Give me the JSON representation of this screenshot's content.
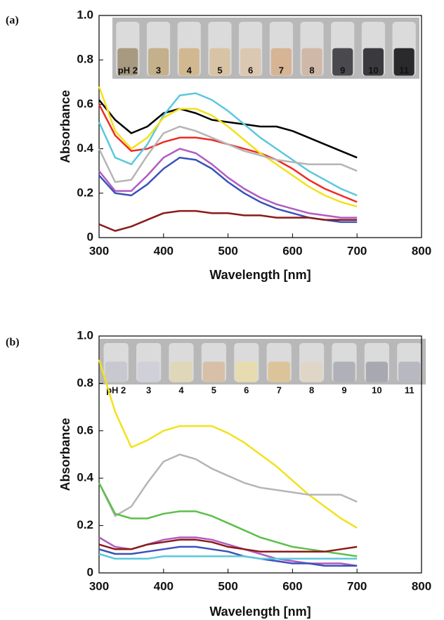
{
  "chart_data": [
    {
      "type": "line",
      "panel_label": "(a)",
      "xlabel": "Wavelength [nm]",
      "ylabel": "Absorbance",
      "xlim": [
        300,
        800
      ],
      "ylim": [
        0,
        1
      ],
      "xticks": [
        300,
        400,
        500,
        600,
        700,
        800
      ],
      "yticks": [
        0,
        0.2,
        0.4,
        0.6,
        0.8,
        {
          "value": 1,
          "label": "1.0"
        }
      ],
      "inset_labels": [
        "pH 2",
        "3",
        "4",
        "5",
        "6",
        "7",
        "8",
        "9",
        "10",
        "11"
      ],
      "x": [
        300,
        325,
        350,
        375,
        400,
        425,
        450,
        475,
        500,
        525,
        550,
        575,
        600,
        625,
        650,
        675,
        700
      ],
      "series": [
        {
          "color": "#000000",
          "values": [
            0.62,
            0.53,
            0.47,
            0.5,
            0.56,
            0.58,
            0.56,
            0.53,
            0.52,
            0.51,
            0.5,
            0.5,
            0.48,
            0.45,
            0.42,
            0.39,
            0.36
          ]
        },
        {
          "color": "#ee2b24",
          "values": [
            0.6,
            0.46,
            0.39,
            0.4,
            0.43,
            0.45,
            0.45,
            0.44,
            0.42,
            0.4,
            0.38,
            0.35,
            0.31,
            0.26,
            0.22,
            0.19,
            0.16
          ]
        },
        {
          "color": "#5bc8dc",
          "values": [
            0.52,
            0.36,
            0.33,
            0.42,
            0.55,
            0.64,
            0.65,
            0.62,
            0.57,
            0.51,
            0.45,
            0.4,
            0.35,
            0.3,
            0.26,
            0.22,
            0.19
          ]
        },
        {
          "color": "#f2e21c",
          "values": [
            0.68,
            0.48,
            0.4,
            0.45,
            0.54,
            0.58,
            0.58,
            0.55,
            0.5,
            0.44,
            0.38,
            0.33,
            0.28,
            0.23,
            0.19,
            0.16,
            0.14
          ]
        },
        {
          "color": "#b5b5b5",
          "values": [
            0.4,
            0.25,
            0.26,
            0.37,
            0.47,
            0.5,
            0.48,
            0.45,
            0.42,
            0.39,
            0.37,
            0.35,
            0.34,
            0.33,
            0.33,
            0.33,
            0.3
          ]
        },
        {
          "color": "#b05cc0",
          "values": [
            0.3,
            0.21,
            0.21,
            0.28,
            0.36,
            0.4,
            0.38,
            0.33,
            0.27,
            0.22,
            0.18,
            0.15,
            0.13,
            0.11,
            0.1,
            0.09,
            0.09
          ]
        },
        {
          "color": "#3a52b8",
          "values": [
            0.28,
            0.2,
            0.19,
            0.24,
            0.31,
            0.36,
            0.35,
            0.31,
            0.25,
            0.2,
            0.16,
            0.13,
            0.11,
            0.09,
            0.08,
            0.07,
            0.07
          ]
        },
        {
          "color": "#8b1a1a",
          "values": [
            0.06,
            0.03,
            0.05,
            0.08,
            0.11,
            0.12,
            0.12,
            0.11,
            0.11,
            0.1,
            0.1,
            0.09,
            0.09,
            0.09,
            0.08,
            0.08,
            0.08
          ]
        }
      ]
    },
    {
      "type": "line",
      "panel_label": "(b)",
      "xlabel": "Wavelength [nm]",
      "ylabel": "Absorbance",
      "xlim": [
        300,
        800
      ],
      "ylim": [
        0,
        1
      ],
      "xticks": [
        300,
        400,
        500,
        600,
        700,
        800
      ],
      "yticks": [
        0,
        0.2,
        0.4,
        0.6,
        0.8,
        {
          "value": 1,
          "label": "1.0"
        }
      ],
      "inset_labels": [
        "pH 2",
        "3",
        "4",
        "5",
        "6",
        "7",
        "8",
        "9",
        "10",
        "11"
      ],
      "x": [
        300,
        325,
        350,
        375,
        400,
        425,
        450,
        475,
        500,
        525,
        550,
        575,
        600,
        625,
        650,
        675,
        700
      ],
      "series": [
        {
          "color": "#f2e21c",
          "values": [
            0.9,
            0.68,
            0.53,
            0.56,
            0.6,
            0.62,
            0.62,
            0.62,
            0.59,
            0.55,
            0.5,
            0.45,
            0.39,
            0.33,
            0.28,
            0.23,
            0.19
          ]
        },
        {
          "color": "#b5b5b5",
          "values": [
            0.38,
            0.24,
            0.28,
            0.38,
            0.47,
            0.5,
            0.48,
            0.44,
            0.41,
            0.38,
            0.36,
            0.35,
            0.34,
            0.33,
            0.33,
            0.33,
            0.3
          ]
        },
        {
          "color": "#5cbf4a",
          "values": [
            0.38,
            0.25,
            0.23,
            0.23,
            0.25,
            0.26,
            0.26,
            0.24,
            0.21,
            0.18,
            0.15,
            0.13,
            0.11,
            0.1,
            0.09,
            0.08,
            0.07
          ]
        },
        {
          "color": "#b05cc0",
          "values": [
            0.15,
            0.11,
            0.1,
            0.12,
            0.14,
            0.15,
            0.15,
            0.14,
            0.12,
            0.1,
            0.08,
            0.06,
            0.05,
            0.04,
            0.04,
            0.04,
            0.03
          ]
        },
        {
          "color": "#8b1a1a",
          "values": [
            0.12,
            0.1,
            0.1,
            0.12,
            0.13,
            0.14,
            0.14,
            0.13,
            0.11,
            0.1,
            0.09,
            0.09,
            0.09,
            0.09,
            0.09,
            0.1,
            0.11
          ]
        },
        {
          "color": "#3a52b8",
          "values": [
            0.1,
            0.08,
            0.08,
            0.09,
            0.1,
            0.11,
            0.11,
            0.1,
            0.09,
            0.07,
            0.06,
            0.05,
            0.04,
            0.04,
            0.03,
            0.03,
            0.03
          ]
        },
        {
          "color": "#5bc8dc",
          "values": [
            0.08,
            0.06,
            0.06,
            0.06,
            0.07,
            0.07,
            0.07,
            0.07,
            0.07,
            0.07,
            0.06,
            0.06,
            0.06,
            0.06,
            0.06,
            0.06,
            0.06
          ]
        }
      ]
    }
  ]
}
